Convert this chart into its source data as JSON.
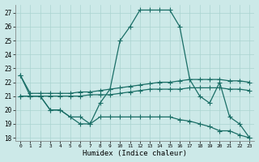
{
  "xlabel": "Humidex (Indice chaleur)",
  "bg_color": "#cce9e8",
  "grid_color": "#aad4d0",
  "line_color": "#1a6e66",
  "xlim": [
    -0.5,
    23.5
  ],
  "ylim": [
    17.8,
    27.6
  ],
  "yticks": [
    18,
    19,
    20,
    21,
    22,
    23,
    24,
    25,
    26,
    27
  ],
  "xticks": [
    0,
    1,
    2,
    3,
    4,
    5,
    6,
    7,
    8,
    9,
    10,
    11,
    12,
    13,
    14,
    15,
    16,
    17,
    18,
    19,
    20,
    21,
    22,
    23
  ],
  "line_main_x": [
    0,
    1,
    2,
    3,
    4,
    5,
    6,
    7,
    8,
    9,
    10,
    11,
    12,
    13,
    14,
    15,
    16,
    17,
    18,
    19,
    20,
    21,
    22,
    23
  ],
  "line_main_y": [
    22.5,
    21.0,
    21.0,
    20.0,
    20.0,
    19.5,
    19.0,
    19.0,
    20.5,
    21.5,
    25.0,
    26.0,
    27.2,
    27.2,
    27.2,
    27.2,
    26.0,
    22.2,
    21.0,
    20.5,
    22.0,
    19.5,
    19.0,
    18.0
  ],
  "line_upper_x": [
    0,
    1,
    2,
    3,
    4,
    5,
    6,
    7,
    8,
    9,
    10,
    11,
    12,
    13,
    14,
    15,
    16,
    17,
    18,
    19,
    20,
    21,
    22,
    23
  ],
  "line_upper_y": [
    22.5,
    21.2,
    21.2,
    21.2,
    21.2,
    21.2,
    21.3,
    21.3,
    21.4,
    21.5,
    21.6,
    21.7,
    21.8,
    21.9,
    22.0,
    22.0,
    22.1,
    22.2,
    22.2,
    22.2,
    22.2,
    22.1,
    22.1,
    22.0
  ],
  "line_mid_x": [
    0,
    1,
    2,
    3,
    4,
    5,
    6,
    7,
    8,
    9,
    10,
    11,
    12,
    13,
    14,
    15,
    16,
    17,
    18,
    19,
    20,
    21,
    22,
    23
  ],
  "line_mid_y": [
    21.0,
    21.0,
    21.0,
    21.0,
    21.0,
    21.0,
    21.0,
    21.1,
    21.1,
    21.1,
    21.2,
    21.3,
    21.4,
    21.5,
    21.5,
    21.5,
    21.5,
    21.6,
    21.6,
    21.6,
    21.6,
    21.5,
    21.5,
    21.4
  ],
  "line_lower_x": [
    0,
    1,
    2,
    3,
    4,
    5,
    6,
    7,
    8,
    9,
    10,
    11,
    12,
    13,
    14,
    15,
    16,
    17,
    18,
    19,
    20,
    21,
    22,
    23
  ],
  "line_lower_y": [
    21.0,
    21.0,
    21.0,
    20.0,
    20.0,
    19.5,
    19.5,
    19.0,
    19.5,
    19.5,
    19.5,
    19.5,
    19.5,
    19.5,
    19.5,
    19.5,
    19.3,
    19.2,
    19.0,
    18.8,
    18.5,
    18.5,
    18.2,
    18.0
  ]
}
